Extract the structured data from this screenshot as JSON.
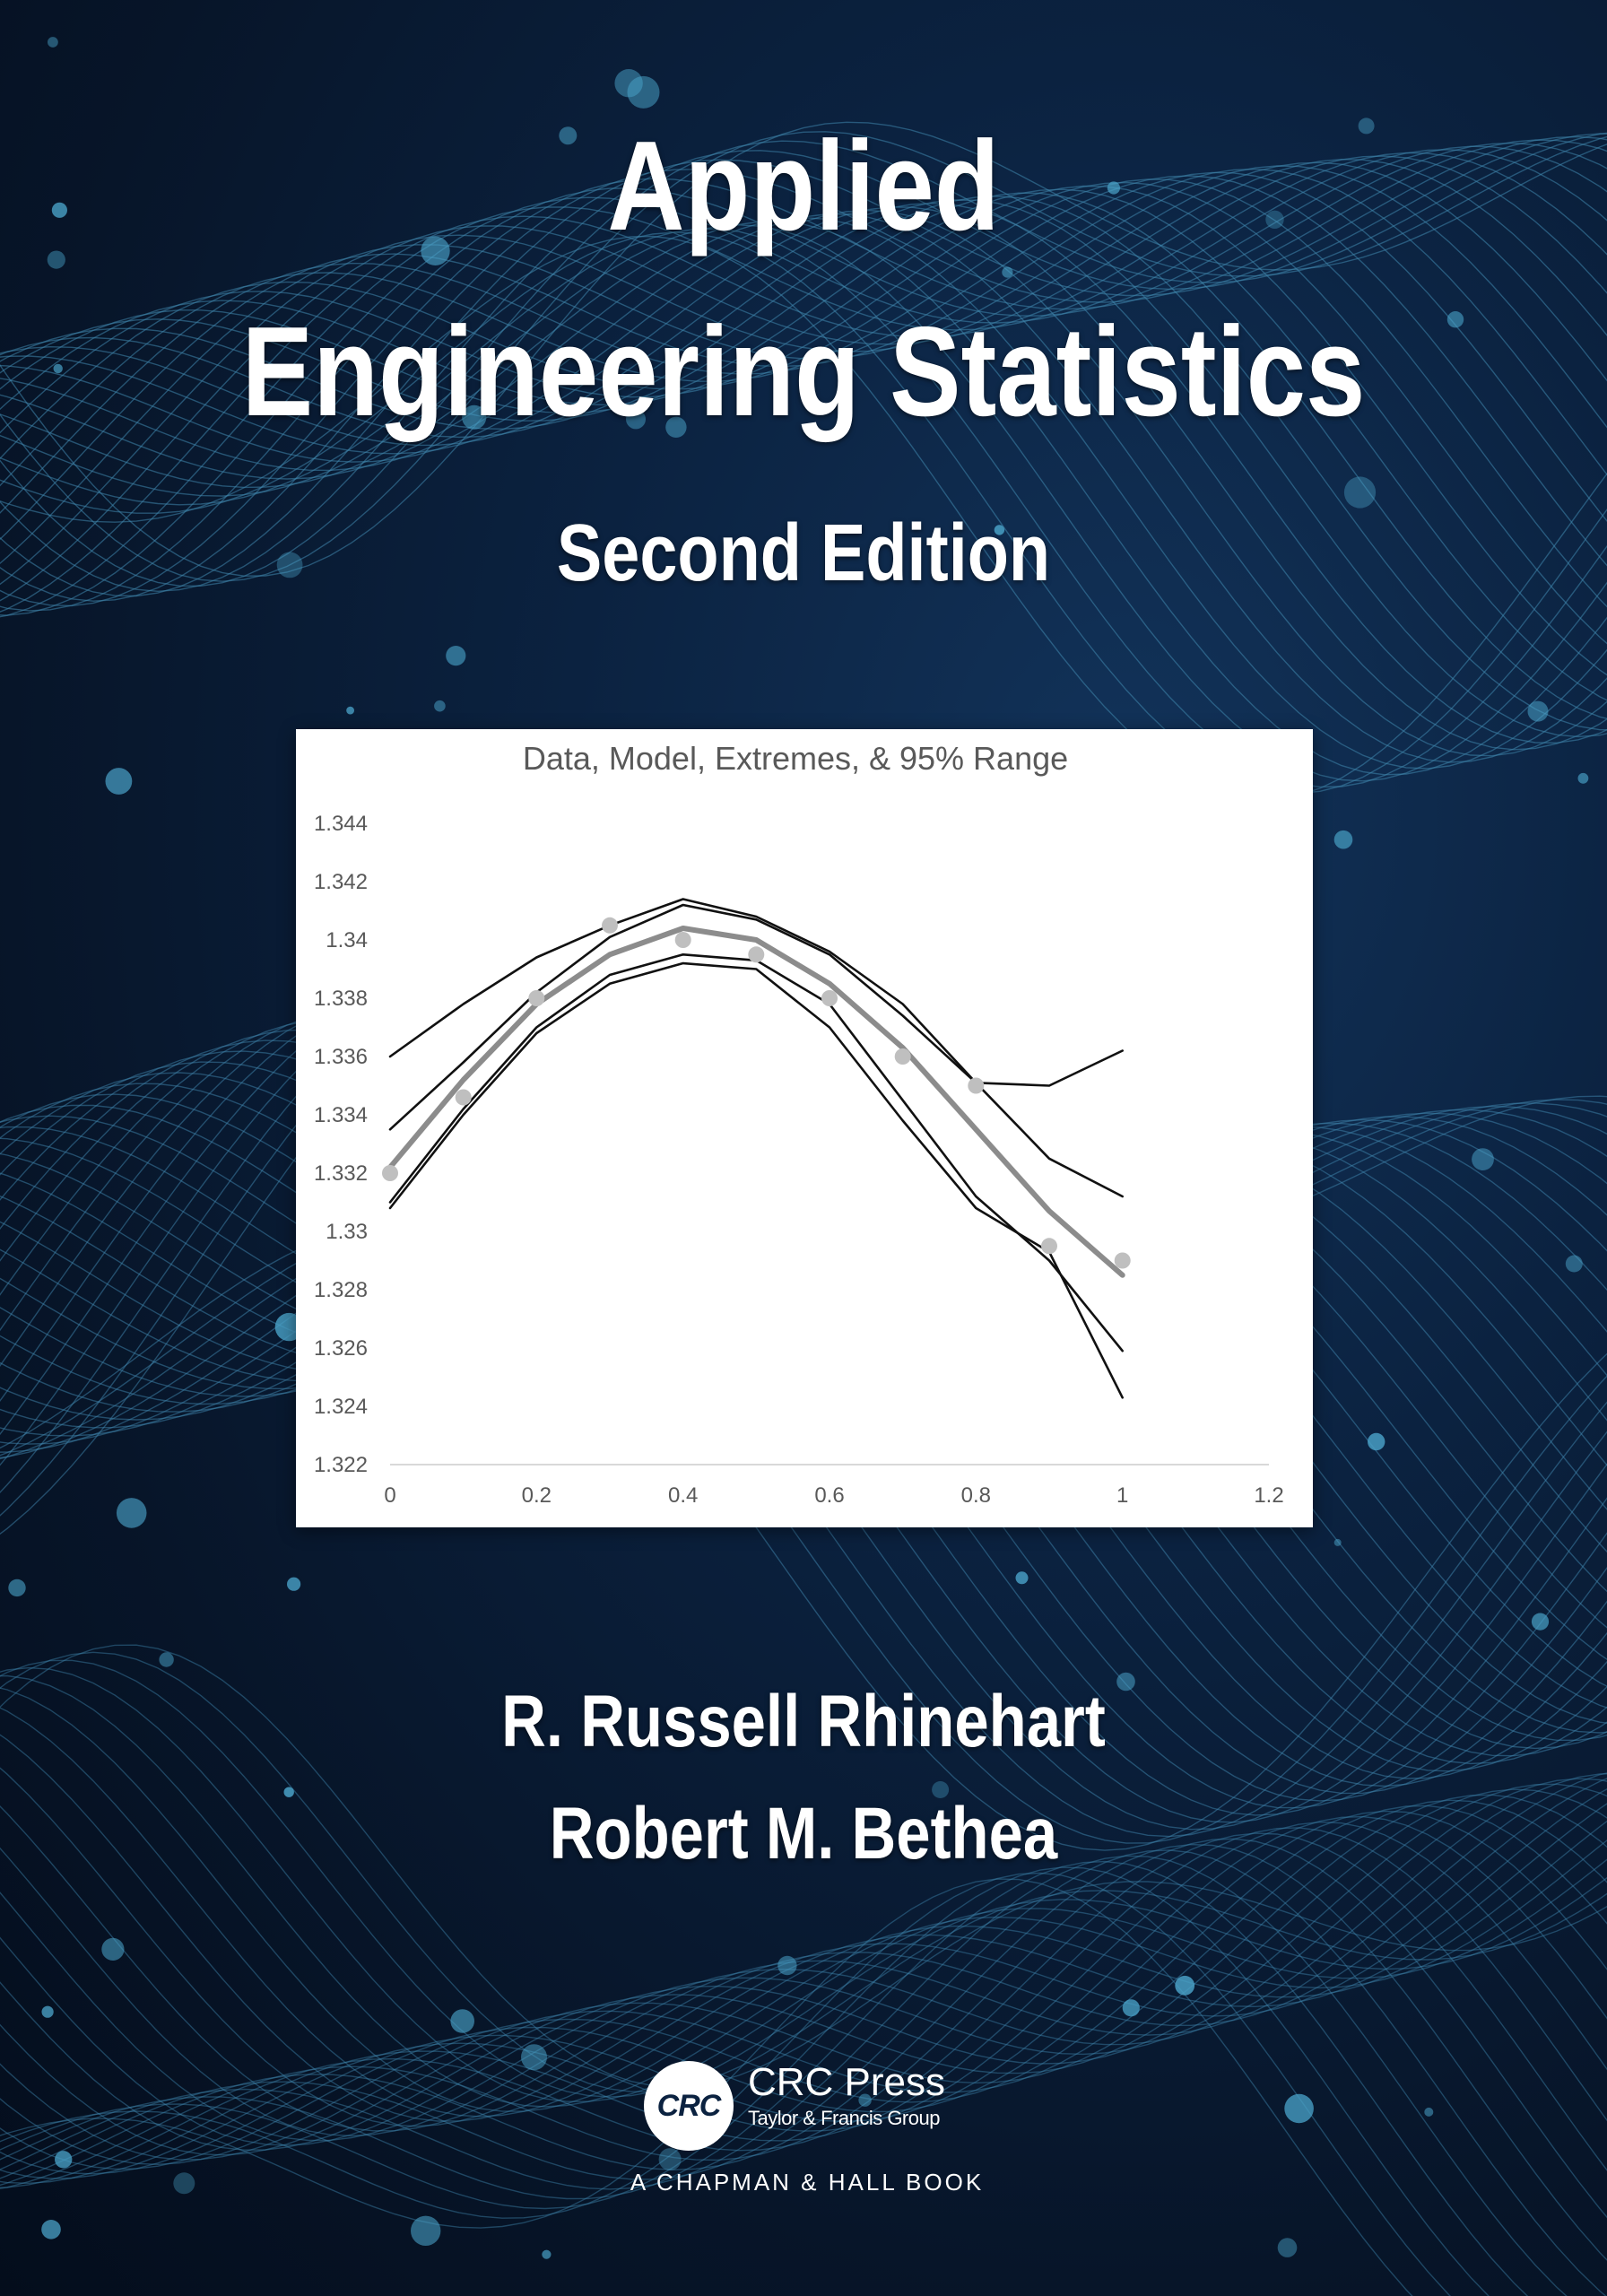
{
  "cover": {
    "title_line1": "Applied",
    "title_line2": "Engineering Statistics",
    "edition": "Second Edition",
    "author1": "R. Russell Rhinehart",
    "author2": "Robert M. Bethea"
  },
  "publisher": {
    "logo_text": "CRC",
    "name": "CRC Press",
    "group": "Taylor & Francis Group",
    "imprint": "A CHAPMAN & HALL BOOK"
  },
  "colors": {
    "background": "#0b2240",
    "lines": "#3f86ad",
    "text": "#ffffff",
    "model_series": "#8c8c8c",
    "data_points": "#bfbfbf",
    "extreme_series": "#111111"
  },
  "chart_data": {
    "type": "line",
    "title": "Data, Model, Extremes, & 95% Range",
    "xlabel": "",
    "ylabel": "",
    "xlim": [
      0,
      1.2
    ],
    "ylim": [
      1.322,
      1.344
    ],
    "x_ticks": [
      "0",
      "0.2",
      "0.4",
      "0.6",
      "0.8",
      "1",
      "1.2"
    ],
    "y_ticks": [
      "1.344",
      "1.342",
      "1.34",
      "1.338",
      "1.336",
      "1.334",
      "1.332",
      "1.33",
      "1.328",
      "1.326",
      "1.324",
      "1.322"
    ],
    "grid": false,
    "legend": "none",
    "x": [
      0,
      0.1,
      0.2,
      0.3,
      0.4,
      0.5,
      0.6,
      0.7,
      0.8,
      0.9,
      1.0
    ],
    "series": [
      {
        "style": "markers",
        "values": [
          1.332,
          1.3346,
          1.338,
          1.3405,
          1.34,
          1.3395,
          1.338,
          1.336,
          1.335,
          1.3295,
          1.329
        ]
      },
      {
        "style": "model",
        "values": [
          1.3322,
          1.3352,
          1.3378,
          1.3395,
          1.3404,
          1.34,
          1.3385,
          1.3363,
          1.3335,
          1.3307,
          1.3285
        ]
      },
      {
        "style": "extreme",
        "values": [
          1.336,
          1.3378,
          1.3394,
          1.3405,
          1.3414,
          1.3408,
          1.3396,
          1.3378,
          1.3351,
          1.335,
          1.3362
        ]
      },
      {
        "style": "extreme",
        "values": [
          1.3335,
          1.3358,
          1.3382,
          1.3401,
          1.3412,
          1.3407,
          1.3395,
          1.3374,
          1.3351,
          1.3325,
          1.3312
        ]
      },
      {
        "style": "extreme",
        "values": [
          1.331,
          1.3342,
          1.337,
          1.3388,
          1.3395,
          1.3393,
          1.3378,
          1.3345,
          1.3312,
          1.329,
          1.3259
        ]
      },
      {
        "style": "extreme",
        "values": [
          1.3308,
          1.334,
          1.3368,
          1.3385,
          1.3392,
          1.339,
          1.337,
          1.3338,
          1.3308,
          1.3293,
          1.3243
        ]
      }
    ]
  }
}
